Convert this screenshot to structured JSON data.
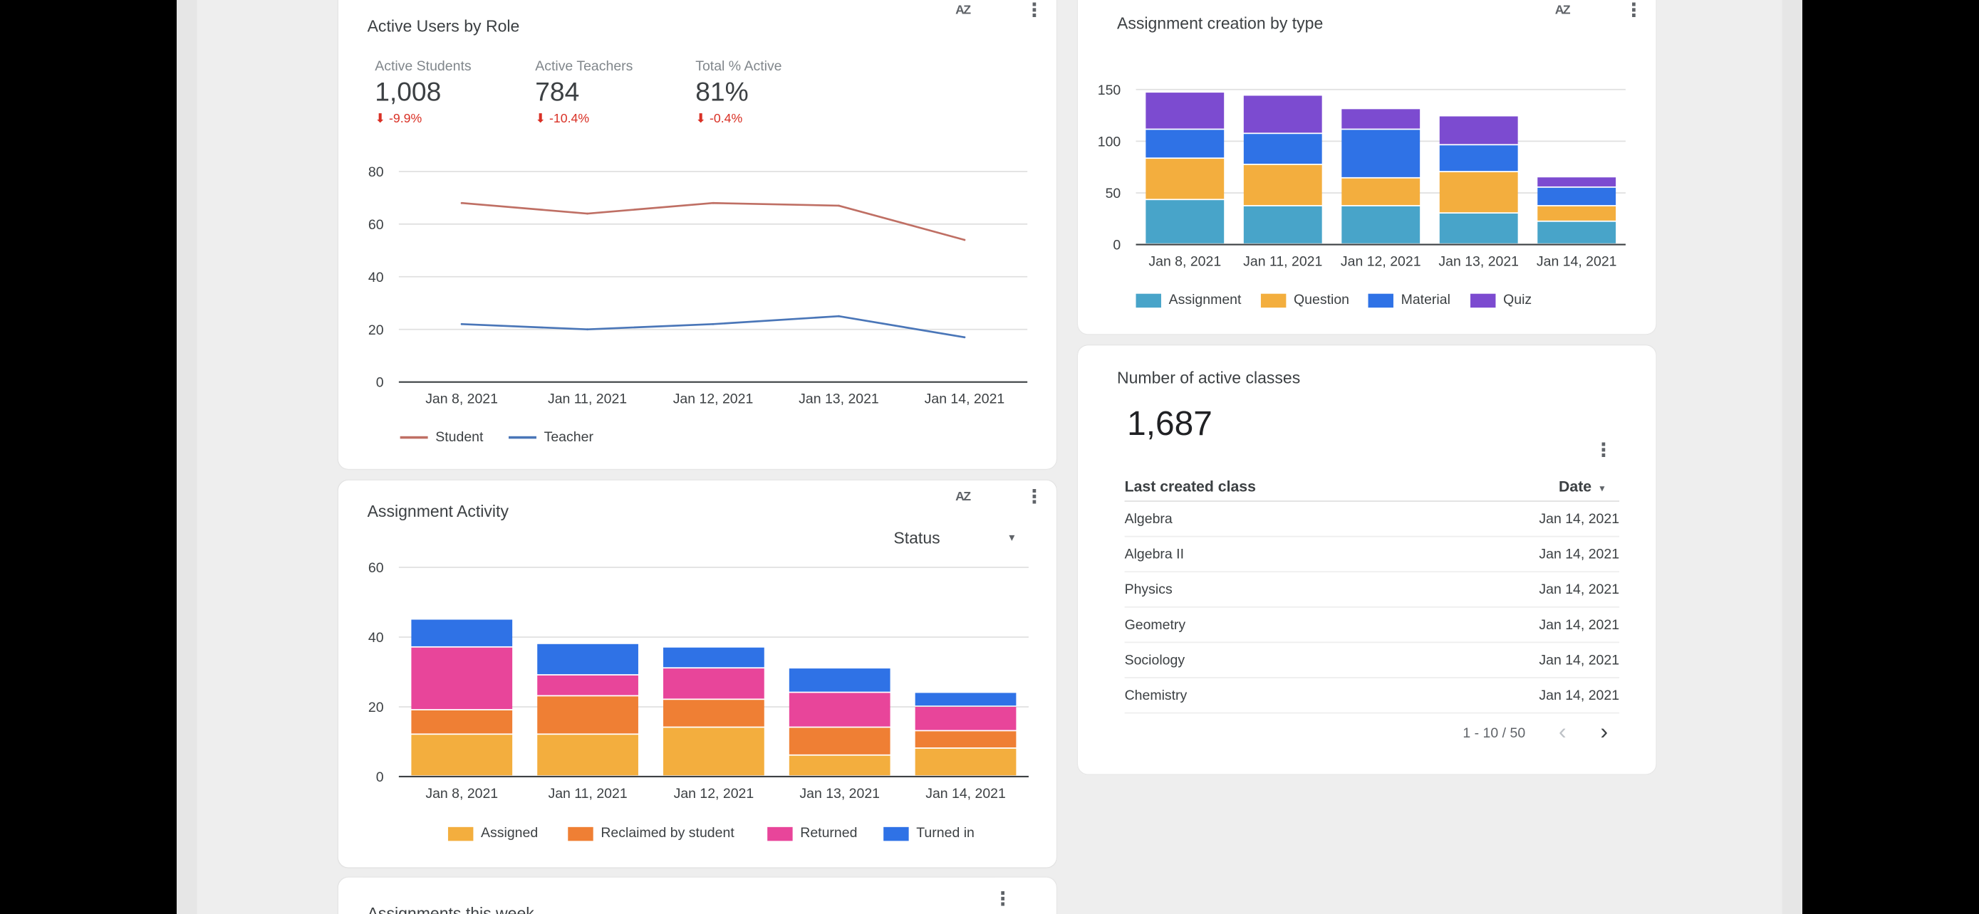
{
  "colors": {
    "student": "#bf6f64",
    "teacher": "#4a76b8",
    "assignment": "#48a4c9",
    "question": "#f3ae3e",
    "material": "#2f72e6",
    "quiz": "#7c4bd0",
    "assigned": "#f3ae3e",
    "reclaimed": "#ef7f34",
    "returned": "#e8459a",
    "turned_in": "#2f72e6",
    "negative": "#d93025"
  },
  "icons": {
    "sort": "sort-az-icon",
    "menu": "more-vert-icon",
    "dropdown": "dropdown-arrow-icon",
    "prev": "chevron-left-icon",
    "next": "chevron-right-icon",
    "delta": "arrow-down-icon"
  },
  "active_users": {
    "title": "Active Users by Role",
    "sort_label": "AZ",
    "menu_label": "⋮",
    "kpis": [
      {
        "label": "Active Students",
        "value": "1,008",
        "delta": "⬇ -9.9%"
      },
      {
        "label": "Active Teachers",
        "value": "784",
        "delta": "⬇ -10.4%"
      },
      {
        "label": "Total % Active",
        "value": "81%",
        "delta": "⬇ -0.4%"
      }
    ],
    "legend": [
      "Student",
      "Teacher"
    ]
  },
  "assignment_activity": {
    "title": "Assignment Activity",
    "sort_label": "AZ",
    "menu_label": "⋮",
    "filter_label": "Status",
    "filter_arrow": "▾",
    "legend": [
      "Assigned",
      "Reclaimed by student",
      "Returned",
      "Turned in"
    ]
  },
  "assignment_creation": {
    "title": "Assignment creation by type",
    "sort_label": "AZ",
    "menu_label": "⋮",
    "legend": [
      "Assignment",
      "Question",
      "Material",
      "Quiz"
    ]
  },
  "active_classes": {
    "title": "Number of active classes",
    "value": "1,687",
    "menu_label": "⋮",
    "table": {
      "col1": "Last created class",
      "col2": "Date",
      "sort_arrow": "▾",
      "rows": [
        {
          "name": "Algebra",
          "date": "Jan 14, 2021"
        },
        {
          "name": "Algebra II",
          "date": "Jan 14, 2021"
        },
        {
          "name": "Physics",
          "date": "Jan 14, 2021"
        },
        {
          "name": "Geometry",
          "date": "Jan 14, 2021"
        },
        {
          "name": "Sociology",
          "date": "Jan 14, 2021"
        },
        {
          "name": "Chemistry",
          "date": "Jan 14, 2021"
        }
      ],
      "pagination": "1 - 10 / 50",
      "prev": "‹",
      "next": "›"
    }
  },
  "assignments_week": {
    "title": "Assignments this week",
    "menu_label": "⋮"
  },
  "chart_data": [
    {
      "id": "active_users",
      "type": "line",
      "categories": [
        "Jan 8, 2021",
        "Jan 11, 2021",
        "Jan 12, 2021",
        "Jan 13, 2021",
        "Jan 14, 2021"
      ],
      "series": [
        {
          "name": "Student",
          "values": [
            68,
            64,
            68,
            67,
            54
          ]
        },
        {
          "name": "Teacher",
          "values": [
            22,
            20,
            22,
            25,
            17
          ]
        }
      ],
      "yticks": [
        0,
        20,
        40,
        60,
        80
      ],
      "ylim": [
        0,
        80
      ],
      "grid": true,
      "legend": "bottom"
    },
    {
      "id": "assignment_activity",
      "type": "bar",
      "stacked": true,
      "categories": [
        "Jan 8, 2021",
        "Jan 11, 2021",
        "Jan 12, 2021",
        "Jan 13, 2021",
        "Jan 14, 2021"
      ],
      "series": [
        {
          "name": "Assigned",
          "values": [
            12,
            12,
            14,
            6,
            8
          ]
        },
        {
          "name": "Reclaimed by student",
          "values": [
            7,
            11,
            8,
            8,
            5
          ]
        },
        {
          "name": "Returned",
          "values": [
            18,
            6,
            9,
            10,
            7
          ]
        },
        {
          "name": "Turned in",
          "values": [
            8,
            9,
            6,
            7,
            4
          ]
        }
      ],
      "yticks": [
        0,
        20,
        40,
        60
      ],
      "ylim": [
        0,
        60
      ],
      "grid": true,
      "legend": "bottom"
    },
    {
      "id": "assignment_creation",
      "type": "bar",
      "stacked": true,
      "categories": [
        "Jan 8, 2021",
        "Jan 11, 2021",
        "Jan 12, 2021",
        "Jan 13, 2021",
        "Jan 14, 2021"
      ],
      "series": [
        {
          "name": "Assignment",
          "values": [
            43,
            37,
            37,
            30,
            22
          ]
        },
        {
          "name": "Question",
          "values": [
            40,
            40,
            27,
            40,
            15
          ]
        },
        {
          "name": "Material",
          "values": [
            28,
            30,
            47,
            26,
            18
          ]
        },
        {
          "name": "Quiz",
          "values": [
            36,
            37,
            20,
            28,
            10
          ]
        }
      ],
      "yticks": [
        0,
        50,
        100,
        150
      ],
      "ylim": [
        0,
        150
      ],
      "grid": true,
      "legend": "bottom"
    }
  ]
}
